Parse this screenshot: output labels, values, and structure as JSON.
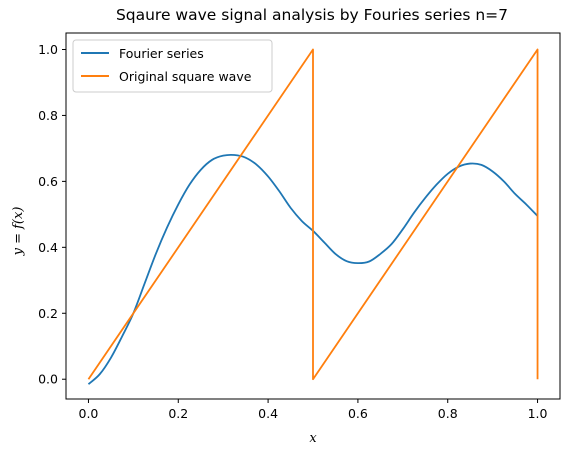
{
  "chart_data": {
    "type": "line",
    "title": "Sqaure wave signal analysis by Fouries series n=7",
    "xlabel": "x",
    "ylabel": "y = f(x)",
    "xlim": [
      -0.05,
      1.05
    ],
    "ylim": [
      -0.06,
      1.05
    ],
    "xticks": [
      0.0,
      0.2,
      0.4,
      0.6,
      0.8,
      1.0
    ],
    "xtick_labels": [
      "0.0",
      "0.2",
      "0.4",
      "0.6",
      "0.8",
      "1.0"
    ],
    "yticks": [
      0.0,
      0.2,
      0.4,
      0.6,
      0.8,
      1.0
    ],
    "ytick_labels": [
      "0.0",
      "0.2",
      "0.4",
      "0.6",
      "0.8",
      "1.0"
    ],
    "grid": false,
    "legend_position": "top-left",
    "series": [
      {
        "name": "Fourier series",
        "color": "#1f77b4",
        "x": [
          0.0,
          0.025,
          0.05,
          0.075,
          0.1,
          0.125,
          0.15,
          0.175,
          0.2,
          0.225,
          0.25,
          0.275,
          0.3,
          0.325,
          0.35,
          0.375,
          0.4,
          0.425,
          0.45,
          0.475,
          0.5,
          0.525,
          0.55,
          0.575,
          0.6,
          0.625,
          0.65,
          0.675,
          0.7,
          0.725,
          0.75,
          0.775,
          0.8,
          0.825,
          0.85,
          0.875,
          0.9,
          0.925,
          0.95,
          0.975,
          1.0
        ],
        "y": [
          -0.015,
          0.015,
          0.065,
          0.13,
          0.2,
          0.29,
          0.38,
          0.46,
          0.53,
          0.59,
          0.635,
          0.665,
          0.678,
          0.68,
          0.672,
          0.65,
          0.615,
          0.57,
          0.52,
          0.48,
          0.45,
          0.415,
          0.38,
          0.358,
          0.352,
          0.357,
          0.38,
          0.41,
          0.455,
          0.505,
          0.55,
          0.59,
          0.623,
          0.645,
          0.654,
          0.65,
          0.63,
          0.6,
          0.562,
          0.53,
          0.495
        ]
      },
      {
        "name": "Original square wave",
        "color": "#ff7f0e",
        "x": [
          0.0,
          0.5,
          0.5,
          1.0,
          1.0
        ],
        "y": [
          0.0,
          1.0,
          0.0,
          1.0,
          0.0
        ]
      }
    ]
  }
}
